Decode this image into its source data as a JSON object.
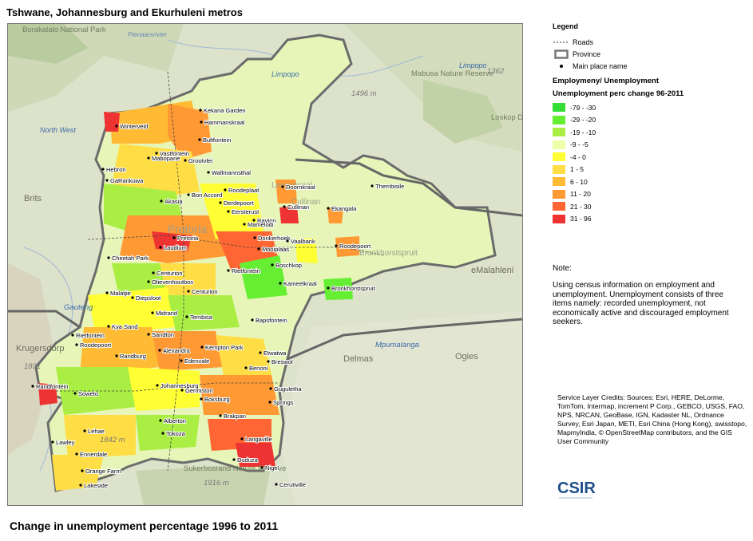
{
  "title": "Tshwane, Johannesburg and Ekurhuleni metros",
  "footer_title": "Change in unemployment percentage 1996 to 2011",
  "legend": {
    "heading": "Legend",
    "roads_label": "Roads",
    "province_label": "Province",
    "main_place_label": "Main place name",
    "section_title": "Employmeny/ Unemployment",
    "layer_title": "Unemployment perc change 96-2011",
    "classes": [
      {
        "label": "-79 - -30",
        "color": "#33dd33"
      },
      {
        "label": "-29 - -20",
        "color": "#66ee33"
      },
      {
        "label": "-19 - -10",
        "color": "#aaee44"
      },
      {
        "label": "-9 - -5",
        "color": "#eeffaa"
      },
      {
        "label": "-4 - 0",
        "color": "#ffff33"
      },
      {
        "label": "1 - 5",
        "color": "#ffdd44"
      },
      {
        "label": "6 - 10",
        "color": "#ffbb33"
      },
      {
        "label": "11 - 20",
        "color": "#ff9933"
      },
      {
        "label": "21 - 30",
        "color": "#ff6633"
      },
      {
        "label": "31 - 96",
        "color": "#ee3333"
      }
    ]
  },
  "note": {
    "label": "Note:",
    "text": "Using census information on employment and unemployment. Unemployment consists of three items namely: recorded unemployment, not economically active and discouraged employment seekers."
  },
  "credits": "Service Layer Credits: Sources: Esri, HERE, DeLorme, TomTom, Intermap, increment P Corp., GEBCO, USGS, FAO, NPS, NRCAN, GeoBase, IGN, Kadaster NL, Ordnance Survey, Esri Japan, METI, Esri China (Hong Kong), swisstopo, MapmyIndia, © OpenStreetMap contributors, and the GIS User Community",
  "logo_text": "CSIR",
  "map": {
    "basemap_labels": [
      "Borakalalo National Park",
      "Pienaarsrivier",
      "Limpopo",
      "Limpopo",
      "Mabusa Nature Reserve",
      "Loskop Dam Nature Reserve",
      "North West",
      "Brits",
      "1496 m",
      "1362",
      "eMalahleni",
      "Gauteng",
      "Mpumalanga",
      "Ogies",
      "Delmas",
      "Krugersdorp",
      "1831",
      "1842 m",
      "Sukerbosrand Nature Reserve",
      "1916 m",
      "Leeuwkraal",
      "Cullinan",
      "Pretoria",
      "Bronkhorstspruit"
    ],
    "places": [
      "Kekana Garden",
      "Hammanskraal",
      "Winterveld",
      "Bultfontein",
      "Vastfontein",
      "Mabopane",
      "Grootvlei",
      "Wallmannsthal",
      "Hebron",
      "GaRankuwa",
      "Roodeplaat",
      "Bon Accord",
      "Akasia",
      "Derdepoort",
      "Eersterust",
      "Doornkraal",
      "Thembisile",
      "Ekangala",
      "Cullinan",
      "Rayton",
      "Mamelodi",
      "Pretoria",
      "Donkerhoek",
      "Vaalbank",
      "Roodepoort",
      "Laudium",
      "Mooiplaas",
      "Cheetah Park",
      "Boschkop",
      "Rietfontein",
      "Centurion",
      "Olievenhoutbos",
      "Kameelkraal",
      "Bronkhorstspruit",
      "Malatjie",
      "Diepsloot",
      "Centurion",
      "Midrand",
      "Tembisa",
      "Bapsfontein",
      "Kya Sand",
      "Rietfontein",
      "Sandton",
      "Roodepoort",
      "Alexandra",
      "Kempton Park",
      "Randburg",
      "Etwatwa",
      "Edenvale",
      "Breswol",
      "Benoni",
      "Randfontein",
      "Soweto",
      "Johannesburg",
      "Germiston",
      "Boksburg",
      "Guguletha",
      "Springs",
      "Alberton",
      "Brakpan",
      "Lehae",
      "Tokoza",
      "Langaville",
      "Duduza",
      "Nigel",
      "Lawley",
      "Ennerdale",
      "Cerutiville",
      "Orange Farm",
      "Lakeside"
    ]
  }
}
